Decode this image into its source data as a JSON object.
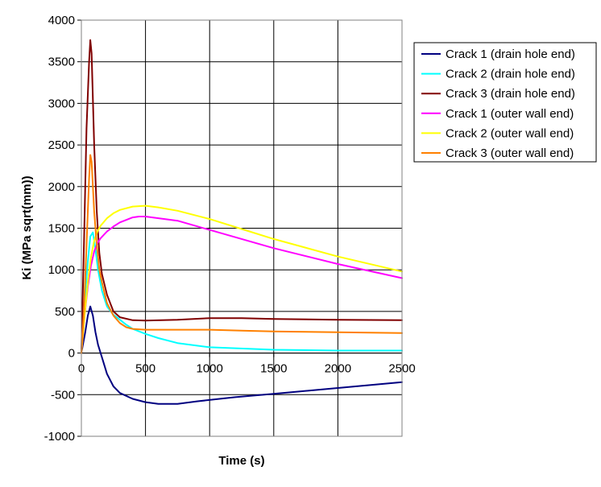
{
  "chart_data": {
    "type": "line",
    "title": "",
    "xlabel": "Time (s)",
    "ylabel": "Ki (MPa sqrt(mm))",
    "xlim": [
      0,
      2500
    ],
    "ylim": [
      -1000,
      4000
    ],
    "xticks": [
      0,
      500,
      1000,
      1500,
      2000,
      2500
    ],
    "yticks": [
      -1000,
      -500,
      0,
      500,
      1000,
      1500,
      2000,
      2500,
      3000,
      3500,
      4000
    ],
    "xtick_labels": [
      "0",
      "500",
      "1000",
      "1500",
      "2000",
      "2500"
    ],
    "ytick_labels": [
      "-1000",
      "-500",
      "0",
      "500",
      "1000",
      "1500",
      "2000",
      "2500",
      "3000",
      "3500",
      "4000"
    ],
    "grid": true,
    "legend_position": "right",
    "series": [
      {
        "name": "Crack 1  (drain hole end)",
        "color": "#000080",
        "x": [
          0,
          30,
          50,
          70,
          90,
          110,
          130,
          160,
          200,
          250,
          300,
          400,
          500,
          600,
          750,
          900,
          1200,
          1500,
          2000,
          2500
        ],
        "y": [
          0,
          250,
          450,
          560,
          450,
          250,
          100,
          -50,
          -250,
          -400,
          -480,
          -550,
          -590,
          -610,
          -610,
          -580,
          -530,
          -490,
          -420,
          -350
        ]
      },
      {
        "name": "Crack 2  (drain hole end)",
        "color": "#00FFFF",
        "x": [
          0,
          30,
          50,
          70,
          90,
          110,
          130,
          160,
          200,
          250,
          300,
          350,
          400,
          500,
          600,
          750,
          1000,
          1500,
          2000,
          2500
        ],
        "y": [
          0,
          700,
          1100,
          1400,
          1450,
          1250,
          1000,
          750,
          560,
          460,
          400,
          340,
          290,
          230,
          180,
          120,
          70,
          40,
          30,
          30
        ]
      },
      {
        "name": "Crack 3  (drain hole end)",
        "color": "#800000",
        "x": [
          0,
          20,
          40,
          60,
          70,
          80,
          100,
          120,
          140,
          160,
          200,
          250,
          300,
          400,
          500,
          750,
          1000,
          1250,
          1500,
          2000,
          2500
        ],
        "y": [
          0,
          1300,
          2700,
          3500,
          3760,
          3600,
          2500,
          1700,
          1200,
          950,
          700,
          500,
          430,
          395,
          390,
          400,
          420,
          420,
          410,
          400,
          395
        ]
      },
      {
        "name": "Crack 1  (outer wall end)",
        "color": "#FF00FF",
        "x": [
          0,
          25,
          50,
          75,
          100,
          125,
          150,
          200,
          250,
          300,
          400,
          450,
          500,
          750,
          1000,
          1250,
          1500,
          2000,
          2500
        ],
        "y": [
          0,
          450,
          800,
          1050,
          1220,
          1320,
          1380,
          1460,
          1520,
          1570,
          1630,
          1640,
          1640,
          1590,
          1480,
          1370,
          1260,
          1070,
          900
        ]
      },
      {
        "name": "Crack 2  (outer wall end)",
        "color": "#FFFF00",
        "x": [
          0,
          25,
          50,
          75,
          100,
          125,
          150,
          200,
          250,
          300,
          400,
          500,
          600,
          750,
          1000,
          1250,
          1500,
          2000,
          2500
        ],
        "y": [
          0,
          450,
          850,
          1150,
          1350,
          1460,
          1530,
          1620,
          1680,
          1720,
          1760,
          1770,
          1750,
          1710,
          1610,
          1490,
          1370,
          1160,
          980
        ]
      },
      {
        "name": "Crack 3  (outer wall end)",
        "color": "#FF8000",
        "x": [
          0,
          20,
          40,
          60,
          70,
          80,
          90,
          100,
          120,
          140,
          160,
          200,
          250,
          300,
          350,
          400,
          500,
          750,
          1000,
          1250,
          1500,
          2000,
          2500
        ],
        "y": [
          0,
          500,
          1300,
          2100,
          2380,
          2300,
          2000,
          1700,
          1300,
          1000,
          850,
          600,
          450,
          360,
          310,
          290,
          280,
          280,
          280,
          270,
          260,
          250,
          240
        ]
      }
    ]
  }
}
